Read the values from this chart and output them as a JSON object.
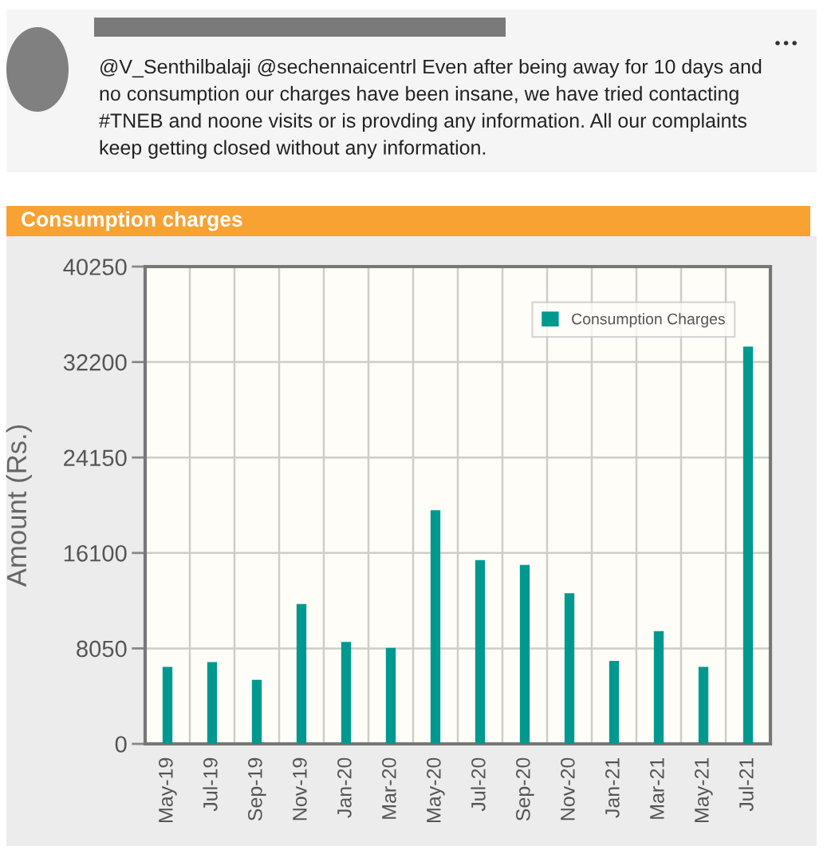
{
  "chart_data": {
    "type": "bar",
    "title": "Consumption charges",
    "ylabel": "Amount (Rs.)",
    "annotations": [
      "@V_Senthilbalaji @sechennaicentrl Even after being away for 10 days and no consumption our charges have been insane, we have tried contacting #TNEB and noone visits or is provding any information. All our complaints keep getting closed without any information."
    ],
    "categories": [
      "May-19",
      "Jul-19",
      "Sep-19",
      "Nov-19",
      "Jan-20",
      "Mar-20",
      "May-20",
      "Jul-20",
      "Sep-20",
      "Nov-20",
      "Jan-21",
      "Mar-21",
      "May-21",
      "Jul-21"
    ],
    "series": [
      {
        "name": "Consumption Charges",
        "color": "#00998f",
        "values": [
          6500,
          6900,
          5400,
          11800,
          8600,
          8100,
          19700,
          15500,
          15100,
          12700,
          7000,
          9500,
          6500,
          33500
        ]
      }
    ],
    "ylim": [
      0,
      40250
    ],
    "yticks": [
      0,
      8050,
      16100,
      24150,
      32200,
      40250
    ],
    "grid": true,
    "legend": "top right"
  }
}
